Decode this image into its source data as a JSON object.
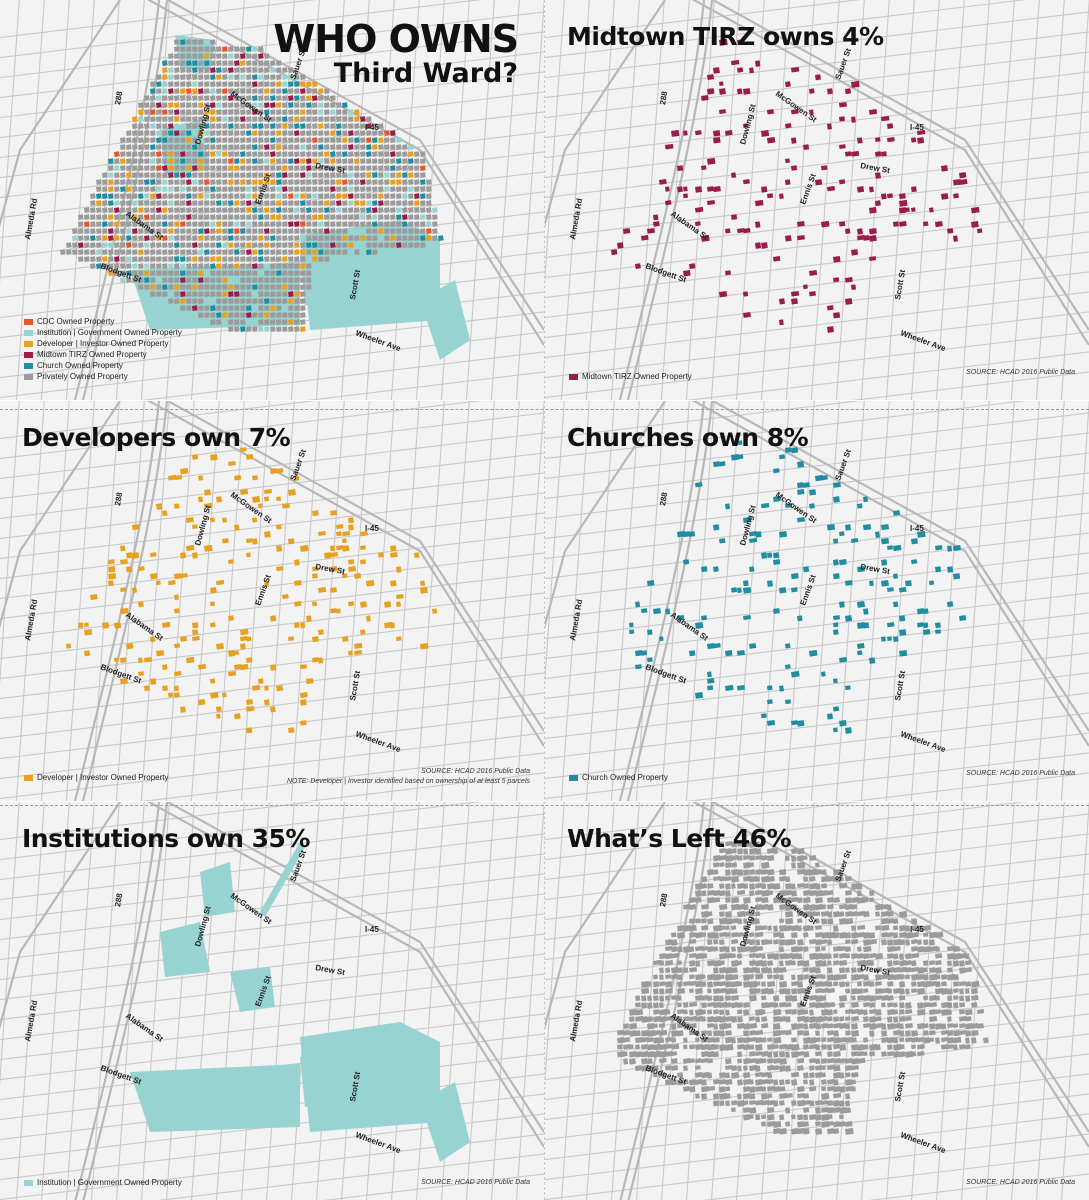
{
  "colors": {
    "cdc": "#e8572b",
    "institution": "#97d3d0",
    "developer": "#e8a020",
    "tirz": "#9b1b4a",
    "church": "#1f8ea3",
    "private": "#9b9b9b",
    "streets": "#c8c8c8"
  },
  "main": {
    "title_line1": "WHO OWNS",
    "title_line2": "Third Ward?",
    "legend": [
      {
        "label": "CDC Owned Property",
        "color": "#e8572b"
      },
      {
        "label": "Institution | Government Owned Property",
        "color": "#97d3d0"
      },
      {
        "label": "Developer | Investor Owned Property",
        "color": "#e8a020"
      },
      {
        "label": "Midtown TIRZ Owned Property",
        "color": "#9b1b4a"
      },
      {
        "label": "Church Owned Property",
        "color": "#1f8ea3"
      },
      {
        "label": "Privately Owned Property",
        "color": "#9b9b9b"
      }
    ]
  },
  "panels": {
    "tirz": {
      "title": "Midtown TIRZ owns 4%",
      "legend": "Midtown TIRZ Owned Property",
      "source": "SOURCE: HCAD 2016 Public Data"
    },
    "developers": {
      "title": "Developers own 7%",
      "legend": "Developer | Investor Owned Property",
      "source": "SOURCE: HCAD 2016 Public Data",
      "note": "NOTE: Developer | Investor identified based on ownership of at least 5 parcels"
    },
    "churches": {
      "title": "Churches own 8%",
      "legend": "Church Owned Property",
      "source": "SOURCE: HCAD 2016 Public Data"
    },
    "institutions": {
      "title": "Institutions own 35%",
      "legend": "Institution | Government Owned Property",
      "source": "SOURCE: HCAD 2016 Public Data"
    },
    "left": {
      "title": "What’s Left 46%",
      "source": "SOURCE: HCAD 2016 Public Data"
    }
  },
  "streets": {
    "almeda": "Almeda Rd",
    "hwy288": "288",
    "blodgett": "Blodgett St",
    "alabama": "Alabama St",
    "dowling": "Dowling St",
    "mcgowen": "McGowen St",
    "sauer": "Sauer St",
    "ennis": "Ennis St",
    "drew": "Drew St",
    "scott": "Scott St",
    "wheeler": "Wheeler Ave",
    "i45": "I-45"
  }
}
